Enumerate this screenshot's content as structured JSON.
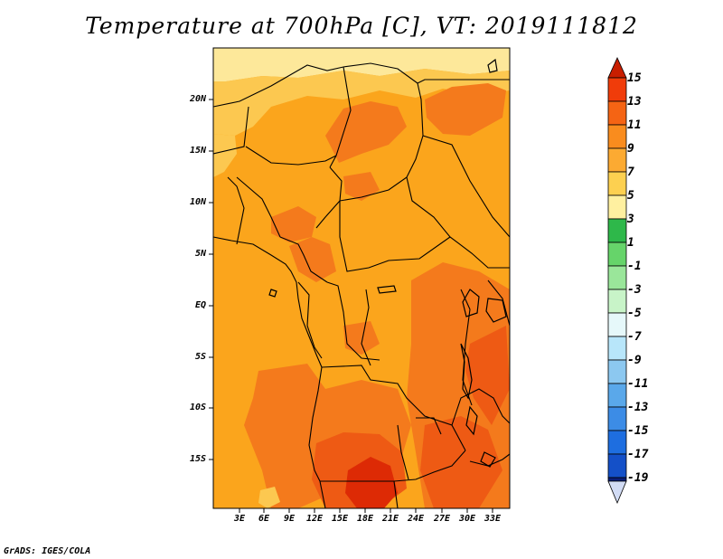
{
  "title": "Temperature at 700hPa [C], VT: 2019111812",
  "map": {
    "variable": "Temperature",
    "level": "700hPa",
    "units": "C",
    "valid_time": "2019111812",
    "lat_labels": [
      "20N",
      "15N",
      "10N",
      "5N",
      "EQ",
      "5S",
      "10S",
      "15S"
    ],
    "lon_labels": [
      "3E",
      "6E",
      "9E",
      "12E",
      "15E",
      "18E",
      "21E",
      "24E",
      "27E",
      "30E",
      "33E"
    ]
  },
  "colorbar": {
    "labels": [
      "15",
      "13",
      "11",
      "9",
      "7",
      "5",
      "3",
      "1",
      "-1",
      "-3",
      "-5",
      "-7",
      "-9",
      "-11",
      "-13",
      "-15",
      "-17",
      "-19"
    ],
    "colors": {
      "over": "#c81e00",
      "c15": "#f03c0a",
      "c13": "#f56414",
      "c11": "#f98c1e",
      "c9": "#fcaa32",
      "c7": "#fdd050",
      "c5": "#fff0a0",
      "c3": "#2eb84a",
      "c1": "#66d46a",
      "m1": "#9ae69a",
      "m3": "#c8f4c8",
      "m5": "#e6f8fa",
      "m7": "#b8e6fa",
      "m9": "#8cc8f0",
      "m11": "#5aa8ea",
      "m13": "#3c8ce6",
      "m15": "#1e6ee0",
      "m17": "#1450c8",
      "m19": "#0a1e78",
      "under": "#d2dcf5"
    }
  },
  "fill_colors": {
    "pale": "#fde89a",
    "light": "#fcc850",
    "base": "#fba51c",
    "warm": "#f47a1c",
    "hot": "#ee5a14",
    "hottest": "#dd2a05",
    "border": "#000000"
  },
  "credit": "GrADS: IGES/COLA"
}
